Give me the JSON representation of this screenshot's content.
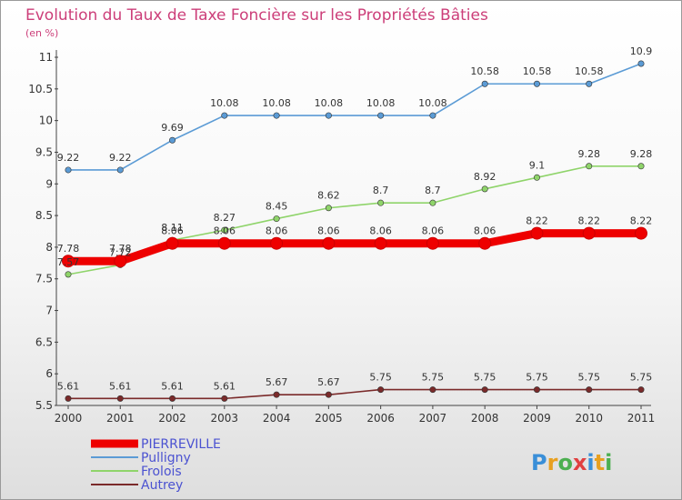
{
  "chart_data": {
    "type": "line",
    "title": "Evolution du Taux de Taxe Foncière sur les Propriétés Bâties",
    "subtitle": "(en %)",
    "x": [
      "2000",
      "2001",
      "2002",
      "2003",
      "2004",
      "2005",
      "2006",
      "2007",
      "2008",
      "2009",
      "2010",
      "2011"
    ],
    "ylim": [
      5.5,
      11
    ],
    "yticks": [
      {
        "value": 5.5,
        "label": "5.5"
      },
      {
        "value": 6,
        "label": "6"
      },
      {
        "value": 6.5,
        "label": "6.5"
      },
      {
        "value": 7,
        "label": "7"
      },
      {
        "value": 7.5,
        "label": "7.5"
      },
      {
        "value": 8,
        "label": "8"
      },
      {
        "value": 8.5,
        "label": "8.5"
      },
      {
        "value": 9,
        "label": "9"
      },
      {
        "value": 9.5,
        "label": "9.5"
      },
      {
        "value": 10,
        "label": "10"
      },
      {
        "value": 10.5,
        "label": "10.5"
      },
      {
        "value": 11,
        "label": "11"
      }
    ],
    "grid": false,
    "legend": "bottom-left",
    "series": [
      {
        "name": "PIERREVILLE",
        "color": "#ee0000",
        "values": [
          7.78,
          7.78,
          8.06,
          8.06,
          8.06,
          8.06,
          8.06,
          8.06,
          8.06,
          8.22,
          8.22,
          8.22
        ],
        "labels": [
          "7.78",
          "7.78",
          "8.06",
          "8.06",
          "8.06",
          "8.06",
          "8.06",
          "8.06",
          "8.06",
          "8.22",
          "8.22",
          "8.22"
        ]
      },
      {
        "name": "Pulligny",
        "color": "#5b9bd5",
        "values": [
          9.22,
          9.22,
          9.69,
          10.08,
          10.08,
          10.08,
          10.08,
          10.08,
          10.58,
          10.58,
          10.58,
          10.9
        ],
        "labels": [
          "9.22",
          "9.22",
          "9.69",
          "10.08",
          "10.08",
          "10.08",
          "10.08",
          "10.08",
          "10.58",
          "10.58",
          "10.58",
          "10.9"
        ]
      },
      {
        "name": "Frolois",
        "color": "#8fd46a",
        "values": [
          7.57,
          7.72,
          8.11,
          8.27,
          8.45,
          8.62,
          8.7,
          8.7,
          8.92,
          9.1,
          9.28,
          9.28
        ],
        "labels": [
          "7.57",
          "7.72",
          "8.11",
          "8.27",
          "8.45",
          "8.62",
          "8.7",
          "8.7",
          "8.92",
          "9.1",
          "9.28",
          "9.28"
        ]
      },
      {
        "name": "Autrey",
        "color": "#7a2a2a",
        "values": [
          5.61,
          5.61,
          5.61,
          5.61,
          5.67,
          5.67,
          5.75,
          5.75,
          5.75,
          5.75,
          5.75,
          5.75
        ],
        "labels": [
          "5.61",
          "5.61",
          "5.61",
          "5.61",
          "5.67",
          "5.67",
          "5.75",
          "5.75",
          "5.75",
          "5.75",
          "5.75",
          "5.75"
        ]
      }
    ]
  },
  "logo": {
    "text": "Proxiti",
    "letters": [
      {
        "ch": "P",
        "color": "#3a8fd8"
      },
      {
        "ch": "r",
        "color": "#e8a020"
      },
      {
        "ch": "o",
        "color": "#4caf50"
      },
      {
        "ch": "x",
        "color": "#e04040"
      },
      {
        "ch": "i",
        "color": "#3a8fd8"
      },
      {
        "ch": "t",
        "color": "#e8a020"
      },
      {
        "ch": "i",
        "color": "#4caf50"
      }
    ]
  }
}
